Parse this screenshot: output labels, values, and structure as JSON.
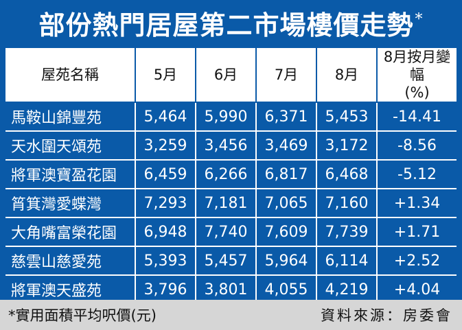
{
  "title": "部份熱門居屋第二市場樓價走勢",
  "title_mark": "*",
  "headers": [
    "屋苑名稱",
    "5月",
    "6月",
    "7月",
    "8月",
    "8月按月變幅",
    "(%)"
  ],
  "rows": [
    {
      "name": "馬鞍山錦豐苑",
      "m5": "5,464",
      "m6": "5,990",
      "m7": "6,371",
      "m8": "5,453",
      "chg": "-14.41"
    },
    {
      "name": "天水圍天頌苑",
      "m5": "3,259",
      "m6": "3,456",
      "m7": "3,469",
      "m8": "3,172",
      "chg": "-8.56"
    },
    {
      "name": "將軍澳寶盈花園",
      "m5": "6,459",
      "m6": "6,266",
      "m7": "6,817",
      "m8": "6,468",
      "chg": "-5.12"
    },
    {
      "name": "筲箕灣愛蝶灣",
      "m5": "7,293",
      "m6": "7,181",
      "m7": "7,065",
      "m8": "7,160",
      "chg": "+1.34"
    },
    {
      "name": "大角嘴富榮花園",
      "m5": "6,948",
      "m6": "7,740",
      "m7": "7,609",
      "m8": "7,739",
      "chg": "+1.71"
    },
    {
      "name": "慈雲山慈愛苑",
      "m5": "5,393",
      "m6": "5,457",
      "m7": "5,964",
      "m8": "6,114",
      "chg": "+2.52"
    },
    {
      "name": "將軍澳天盛苑",
      "m5": "3,796",
      "m6": "3,801",
      "m7": "4,055",
      "m8": "4,219",
      "chg": "+4.04"
    }
  ],
  "footer": {
    "note": "*實用面積平均呎價(元)",
    "source": "資料來源：房委會"
  },
  "colors": {
    "background": "#0a5aa8",
    "footer": "#d6d6d6",
    "text": "#ffffff"
  }
}
